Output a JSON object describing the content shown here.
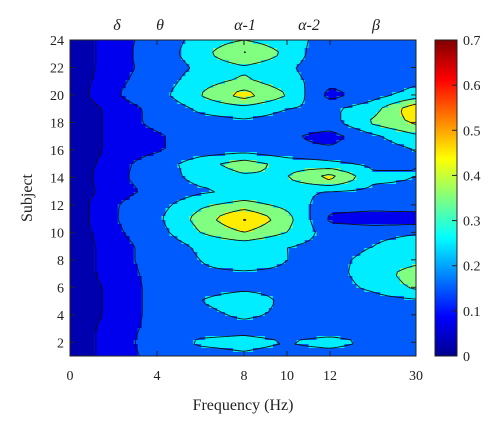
{
  "chart_data": {
    "type": "heatmap",
    "xlabel": "Frequency (Hz)",
    "ylabel": "Subject",
    "x_ticks": [
      "0",
      "4",
      "8",
      "10",
      "12",
      "30"
    ],
    "y_ticks": [
      2,
      4,
      6,
      8,
      10,
      12,
      14,
      16,
      18,
      20,
      22,
      24
    ],
    "ylim": [
      1,
      24
    ],
    "band_labels": [
      "δ",
      "θ",
      "α-1",
      "α-2",
      "β"
    ],
    "colorbar": {
      "min": 0,
      "max": 0.7,
      "ticks": [
        "0",
        "0.1",
        "0.2",
        "0.3",
        "0.4",
        "0.5",
        "0.6",
        "0.7"
      ],
      "colormap": "jet"
    },
    "contour_levels": [
      0.05,
      0.1,
      0.2,
      0.3,
      0.4,
      0.5,
      0.6
    ],
    "columns": [
      "0",
      "2",
      "4",
      "6",
      "8",
      "10",
      "12",
      "21",
      "30"
    ],
    "subjects": [
      1,
      2,
      3,
      4,
      5,
      6,
      7,
      8,
      9,
      10,
      11,
      12,
      13,
      14,
      15,
      16,
      17,
      18,
      19,
      20,
      21,
      22,
      23,
      24
    ],
    "z": [
      [
        0.02,
        0.07,
        0.12,
        0.15,
        0.18,
        0.15,
        0.15,
        0.14,
        0.13
      ],
      [
        0.02,
        0.07,
        0.13,
        0.22,
        0.24,
        0.2,
        0.24,
        0.18,
        0.16
      ],
      [
        0.02,
        0.07,
        0.12,
        0.15,
        0.16,
        0.14,
        0.14,
        0.15,
        0.2
      ],
      [
        0.02,
        0.06,
        0.12,
        0.17,
        0.22,
        0.18,
        0.16,
        0.17,
        0.18
      ],
      [
        0.02,
        0.06,
        0.12,
        0.2,
        0.25,
        0.18,
        0.15,
        0.16,
        0.18
      ],
      [
        0.02,
        0.06,
        0.12,
        0.17,
        0.18,
        0.18,
        0.16,
        0.22,
        0.32
      ],
      [
        0.02,
        0.07,
        0.12,
        0.18,
        0.18,
        0.18,
        0.17,
        0.24,
        0.36
      ],
      [
        0.02,
        0.07,
        0.13,
        0.2,
        0.28,
        0.2,
        0.18,
        0.22,
        0.26
      ],
      [
        0.02,
        0.07,
        0.13,
        0.22,
        0.24,
        0.2,
        0.17,
        0.2,
        0.3
      ],
      [
        0.02,
        0.08,
        0.16,
        0.3,
        0.4,
        0.3,
        0.15,
        0.15,
        0.18
      ],
      [
        0.02,
        0.09,
        0.18,
        0.34,
        0.52,
        0.34,
        0.08,
        0.05,
        0.04
      ],
      [
        0.02,
        0.09,
        0.16,
        0.28,
        0.34,
        0.27,
        0.14,
        0.14,
        0.16
      ],
      [
        0.02,
        0.07,
        0.12,
        0.18,
        0.22,
        0.22,
        0.2,
        0.18,
        0.18
      ],
      [
        0.02,
        0.08,
        0.14,
        0.24,
        0.28,
        0.3,
        0.45,
        0.22,
        0.2
      ],
      [
        0.02,
        0.07,
        0.14,
        0.26,
        0.35,
        0.26,
        0.22,
        0.18,
        0.2
      ],
      [
        0.02,
        0.06,
        0.09,
        0.14,
        0.16,
        0.12,
        0.12,
        0.14,
        0.2
      ],
      [
        0.02,
        0.06,
        0.09,
        0.14,
        0.14,
        0.12,
        0.06,
        0.18,
        0.28
      ],
      [
        0.02,
        0.06,
        0.12,
        0.16,
        0.18,
        0.16,
        0.16,
        0.32,
        0.42
      ],
      [
        0.02,
        0.06,
        0.12,
        0.22,
        0.26,
        0.2,
        0.18,
        0.26,
        0.48
      ],
      [
        0.02,
        0.09,
        0.16,
        0.3,
        0.45,
        0.3,
        0.06,
        0.16,
        0.24
      ],
      [
        0.02,
        0.08,
        0.14,
        0.26,
        0.32,
        0.24,
        0.14,
        0.14,
        0.18
      ],
      [
        0.02,
        0.07,
        0.13,
        0.22,
        0.28,
        0.22,
        0.12,
        0.14,
        0.16
      ],
      [
        0.02,
        0.07,
        0.14,
        0.26,
        0.42,
        0.28,
        0.1,
        0.14,
        0.2
      ],
      [
        0.02,
        0.07,
        0.13,
        0.24,
        0.3,
        0.24,
        0.16,
        0.16,
        0.18
      ]
    ]
  }
}
